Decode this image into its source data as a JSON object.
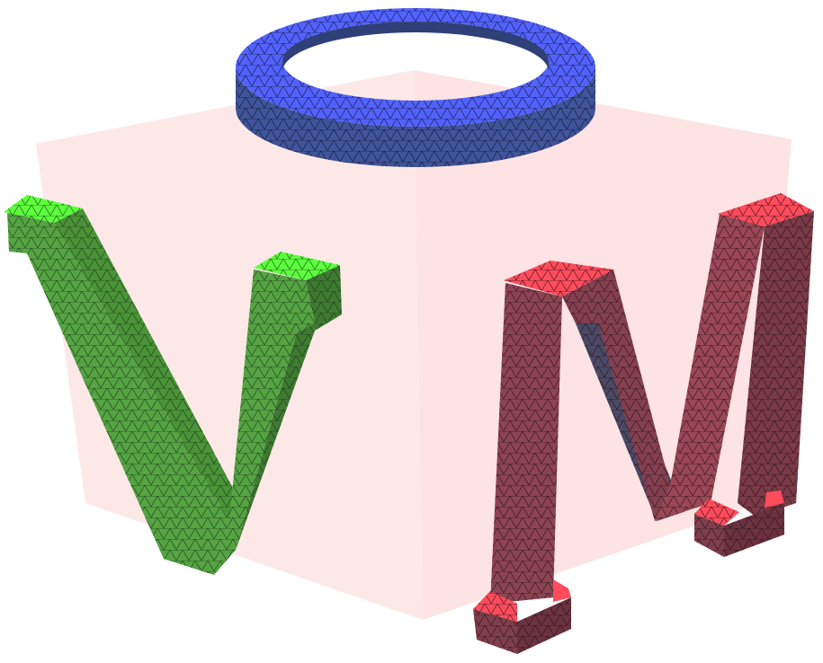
{
  "scene": {
    "background": "#ffffff",
    "cube_color": "#fde4e4",
    "objects": [
      {
        "name": "ring",
        "shape": "torus",
        "top": "#5262ff",
        "side": "#3f5499",
        "wire": "#1a1f3a"
      },
      {
        "name": "letter-v",
        "glyph": "V",
        "top": "#5cff3d",
        "front": "#55a343",
        "side": "#3f7a33",
        "wire": "#173414"
      },
      {
        "name": "letter-m",
        "glyph": "M",
        "top": "#ff4c5c",
        "front": "#8c4452",
        "side": "#6b3340",
        "dark": "#4a4a66",
        "wire": "#2a1016"
      }
    ]
  }
}
